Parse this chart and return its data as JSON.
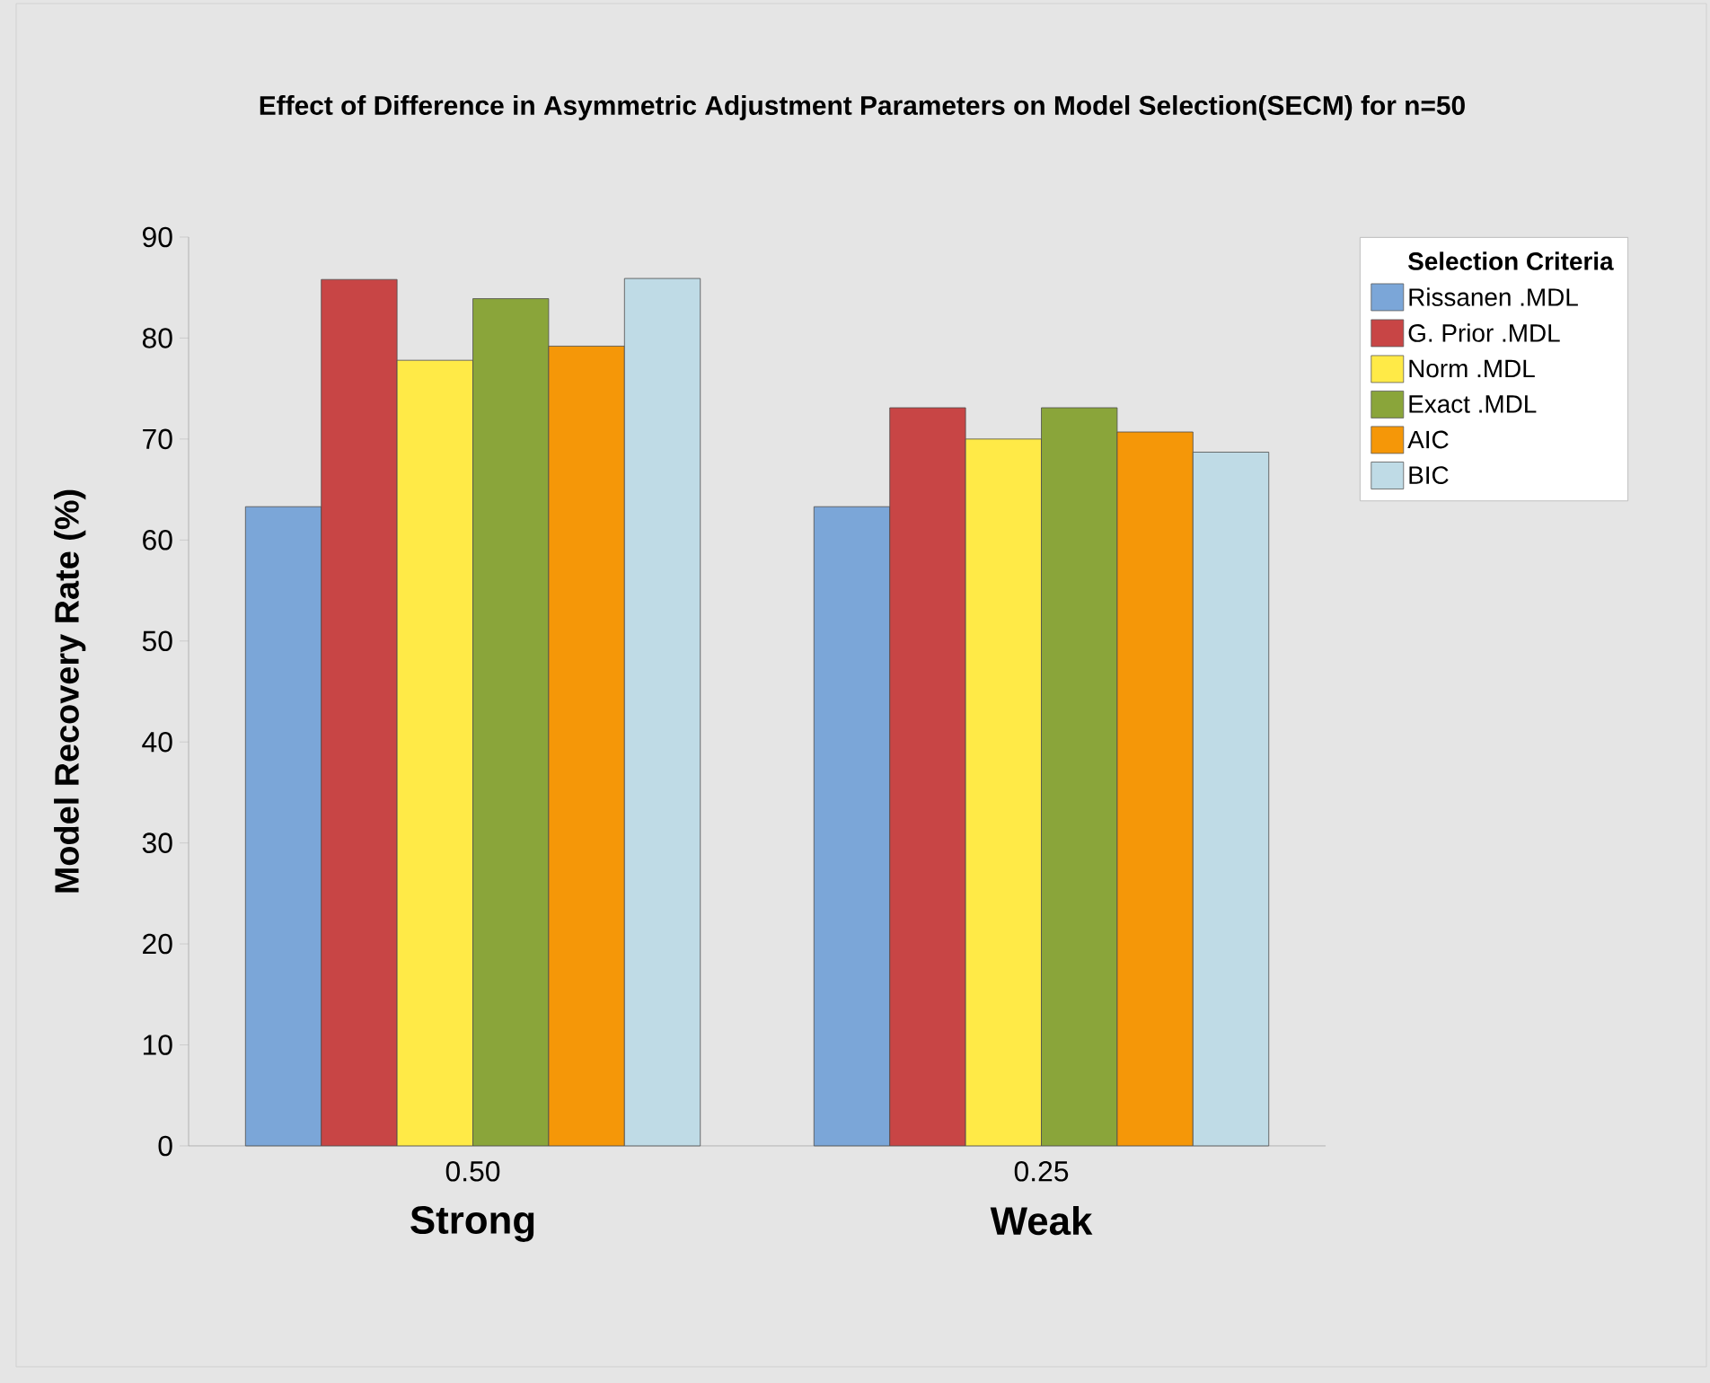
{
  "chart_data": {
    "type": "bar",
    "title": "Effect of Difference in Asymmetric Adjustment Parameters on Model Selection(SECM) for n=50",
    "ylabel": "Model Recovery Rate (%)",
    "legend_title": "Selection Criteria",
    "categories": [
      "0.50",
      "0.25"
    ],
    "annotations": [
      "Strong",
      "Weak"
    ],
    "series": [
      {
        "name": "Rissanen .MDL",
        "color": "#7ba6d8",
        "values": [
          63.3,
          63.3
        ]
      },
      {
        "name": "G. Prior .MDL",
        "color": "#c84545",
        "values": [
          85.8,
          73.1
        ]
      },
      {
        "name": "Norm .MDL",
        "color": "#ffea47",
        "values": [
          77.8,
          70.0
        ]
      },
      {
        "name": "Exact .MDL",
        "color": "#8aa53a",
        "values": [
          83.9,
          73.1
        ]
      },
      {
        "name": "AIC",
        "color": "#f59708",
        "values": [
          79.2,
          70.7
        ]
      },
      {
        "name": "BIC",
        "color": "#bfdbe6",
        "values": [
          85.9,
          68.7
        ]
      }
    ],
    "ylim": [
      0,
      90
    ],
    "yticks": [
      0,
      10,
      20,
      30,
      40,
      50,
      60,
      70,
      80,
      90
    ],
    "grid": false,
    "legend": "right"
  }
}
